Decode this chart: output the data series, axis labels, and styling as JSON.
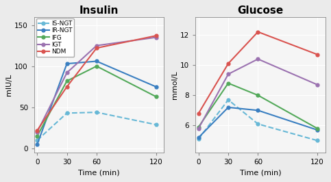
{
  "time": [
    0,
    30,
    60,
    120
  ],
  "insulin": {
    "IS-NGT": [
      10,
      43,
      44,
      29
    ],
    "IR-NGT": [
      5,
      103,
      106,
      75
    ],
    "IFG": [
      15,
      82,
      100,
      63
    ],
    "IGT": [
      20,
      92,
      125,
      135
    ],
    "NDM": [
      22,
      75,
      122,
      137
    ]
  },
  "glucose": {
    "IS-NGT": [
      5.1,
      7.7,
      6.1,
      5.0
    ],
    "IR-NGT": [
      5.2,
      7.2,
      7.0,
      5.7
    ],
    "IFG": [
      5.9,
      8.8,
      8.0,
      5.8
    ],
    "IGT": [
      5.8,
      9.4,
      10.4,
      8.7
    ],
    "NDM": [
      6.8,
      10.1,
      12.2,
      10.7
    ]
  },
  "colors": {
    "IS-NGT": "#67B8D6",
    "IR-NGT": "#3A7FC1",
    "IFG": "#53A95A",
    "IGT": "#9B72B0",
    "NDM": "#D9534F"
  },
  "linestyles": {
    "IS-NGT": "--",
    "IR-NGT": "-",
    "IFG": "-",
    "IGT": "-",
    "NDM": "-"
  },
  "insulin_ylim": [
    -5,
    160
  ],
  "insulin_yticks": [
    0,
    50,
    100,
    150
  ],
  "glucose_ylim": [
    4.2,
    13.2
  ],
  "glucose_yticks": [
    6,
    8,
    10,
    12
  ],
  "insulin_ylabel": "mIU/L",
  "glucose_ylabel": "mmol/L",
  "xlabel": "Time (min)",
  "insulin_title": "Insulin",
  "glucose_title": "Glucose",
  "legend_order": [
    "IS-NGT",
    "IR-NGT",
    "IFG",
    "IGT",
    "NDM"
  ],
  "bg_color": "#EBEBEB",
  "plot_bg": "#F5F5F5",
  "grid_color": "white"
}
